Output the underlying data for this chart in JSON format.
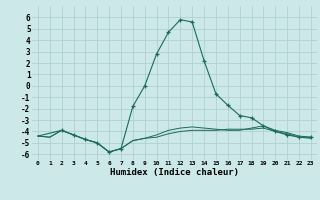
{
  "xlabel": "Humidex (Indice chaleur)",
  "bg_color": "#cce8e8",
  "grid_color": "#b0d0d0",
  "line_color": "#1a6b5a",
  "xlim": [
    -0.5,
    23.5
  ],
  "ylim": [
    -6.5,
    7.0
  ],
  "xtick_vals": [
    0,
    1,
    2,
    3,
    4,
    5,
    6,
    7,
    8,
    9,
    10,
    11,
    12,
    13,
    14,
    15,
    16,
    17,
    18,
    19,
    20,
    21,
    22,
    23
  ],
  "ytick_vals": [
    -6,
    -5,
    -4,
    -3,
    -2,
    -1,
    0,
    1,
    2,
    3,
    4,
    5,
    6
  ],
  "line1_x": [
    0,
    1,
    2,
    3,
    4,
    5,
    6,
    7,
    8,
    9,
    10,
    11,
    12,
    13,
    14,
    15,
    16,
    17,
    18,
    19,
    20,
    21,
    22,
    23
  ],
  "line1_y": [
    -4.4,
    -4.5,
    -3.9,
    -4.3,
    -4.7,
    -5.0,
    -5.8,
    -5.5,
    -4.8,
    -4.6,
    -4.5,
    -4.2,
    -4.0,
    -3.9,
    -3.9,
    -3.9,
    -3.8,
    -3.8,
    -3.8,
    -3.7,
    -4.0,
    -4.2,
    -4.5,
    -4.6
  ],
  "line2_x": [
    0,
    1,
    2,
    3,
    4,
    5,
    6,
    7,
    8,
    9,
    10,
    11,
    12,
    13,
    14,
    15,
    16,
    17,
    18,
    19,
    20,
    21,
    22,
    23
  ],
  "line2_y": [
    -4.4,
    -4.5,
    -3.9,
    -4.3,
    -4.7,
    -5.0,
    -5.8,
    -5.5,
    -4.8,
    -4.6,
    -4.3,
    -3.9,
    -3.7,
    -3.6,
    -3.7,
    -3.8,
    -3.9,
    -3.9,
    -3.7,
    -3.5,
    -3.9,
    -4.1,
    -4.4,
    -4.5
  ],
  "line3_x": [
    0,
    2,
    3,
    4,
    5,
    6,
    7,
    8,
    9,
    10,
    11,
    12,
    13,
    14,
    15,
    16,
    17,
    18,
    19,
    20,
    21,
    22,
    23
  ],
  "line3_y": [
    -4.4,
    -3.9,
    -4.3,
    -4.7,
    -5.0,
    -5.8,
    -5.5,
    -1.8,
    0.0,
    2.8,
    4.7,
    5.8,
    5.6,
    2.2,
    -0.7,
    -1.7,
    -2.6,
    -2.8,
    -3.5,
    -4.0,
    -4.3,
    -4.5,
    -4.5
  ],
  "markers_x": [
    2,
    3,
    4,
    5,
    6,
    7,
    8,
    9,
    10,
    11,
    12,
    13,
    14,
    15,
    16,
    17,
    18,
    19,
    20,
    21,
    22,
    23
  ],
  "markers_y": [
    -3.9,
    -4.3,
    -4.7,
    -5.0,
    -5.8,
    -5.5,
    -1.8,
    0.0,
    2.8,
    4.7,
    5.8,
    5.6,
    2.2,
    -0.7,
    -1.7,
    -2.6,
    -2.8,
    -3.5,
    -4.0,
    -4.3,
    -4.5,
    -4.5
  ]
}
